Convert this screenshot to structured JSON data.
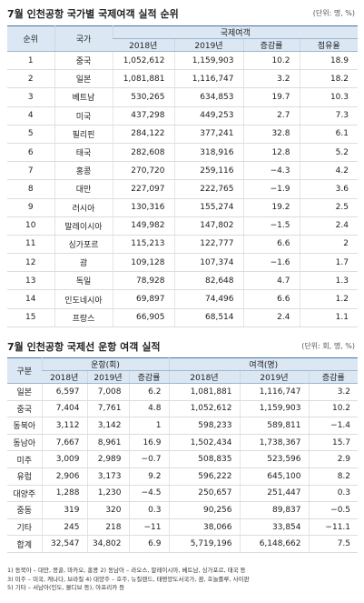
{
  "table1": {
    "title": "7월 인천공항 국가별 국제여객 실적 순위",
    "unit": "(단위: 명, %)",
    "headers": {
      "rank": "순위",
      "country": "국가",
      "group": "국제여객",
      "y2018": "2018년",
      "y2019": "2019년",
      "growth": "증감률",
      "share": "점유율"
    },
    "rows": [
      {
        "rank": "1",
        "country": "중국",
        "y2018": "1,052,612",
        "y2019": "1,159,903",
        "growth": "10.2",
        "share": "18.9"
      },
      {
        "rank": "2",
        "country": "일본",
        "y2018": "1,081,881",
        "y2019": "1,116,747",
        "growth": "3.2",
        "share": "18.2"
      },
      {
        "rank": "3",
        "country": "베트남",
        "y2018": "530,265",
        "y2019": "634,853",
        "growth": "19.7",
        "share": "10.3"
      },
      {
        "rank": "4",
        "country": "미국",
        "y2018": "437,298",
        "y2019": "449,253",
        "growth": "2.7",
        "share": "7.3"
      },
      {
        "rank": "5",
        "country": "필리핀",
        "y2018": "284,122",
        "y2019": "377,241",
        "growth": "32.8",
        "share": "6.1"
      },
      {
        "rank": "6",
        "country": "태국",
        "y2018": "282,608",
        "y2019": "318,916",
        "growth": "12.8",
        "share": "5.2"
      },
      {
        "rank": "7",
        "country": "홍콩",
        "y2018": "270,720",
        "y2019": "259,116",
        "growth": "−4.3",
        "share": "4.2"
      },
      {
        "rank": "8",
        "country": "대만",
        "y2018": "227,097",
        "y2019": "222,765",
        "growth": "−1.9",
        "share": "3.6"
      },
      {
        "rank": "9",
        "country": "러시아",
        "y2018": "130,316",
        "y2019": "155,274",
        "growth": "19.2",
        "share": "2.5"
      },
      {
        "rank": "10",
        "country": "말레이시아",
        "y2018": "149,982",
        "y2019": "147,802",
        "growth": "−1.5",
        "share": "2.4"
      },
      {
        "rank": "11",
        "country": "싱가포르",
        "y2018": "115,213",
        "y2019": "122,777",
        "growth": "6.6",
        "share": "2"
      },
      {
        "rank": "12",
        "country": "괌",
        "y2018": "109,128",
        "y2019": "107,374",
        "growth": "−1.6",
        "share": "1.7"
      },
      {
        "rank": "13",
        "country": "독일",
        "y2018": "78,928",
        "y2019": "82,648",
        "growth": "4.7",
        "share": "1.3"
      },
      {
        "rank": "14",
        "country": "인도네시아",
        "y2018": "69,897",
        "y2019": "74,496",
        "growth": "6.6",
        "share": "1.2"
      },
      {
        "rank": "15",
        "country": "프랑스",
        "y2018": "66,905",
        "y2019": "68,514",
        "growth": "2.4",
        "share": "1.1"
      }
    ]
  },
  "table2": {
    "title": "7월 인천공항 국제선 운항 여객 실적",
    "unit": "(단위: 회, 명, %)",
    "headers": {
      "region": "구분",
      "flights": "운항(회)",
      "passengers": "여객(명)",
      "y2018": "2018년",
      "y2019": "2019년",
      "growth": "증감률"
    },
    "rows": [
      {
        "region": "일본",
        "f2018": "6,597",
        "f2019": "7,008",
        "fg": "6.2",
        "p2018": "1,081,881",
        "p2019": "1,116,747",
        "pg": "3.2"
      },
      {
        "region": "중국",
        "f2018": "7,404",
        "f2019": "7,761",
        "fg": "4.8",
        "p2018": "1,052,612",
        "p2019": "1,159,903",
        "pg": "10.2"
      },
      {
        "region": "동북아",
        "f2018": "3,112",
        "f2019": "3,142",
        "fg": "1",
        "p2018": "598,233",
        "p2019": "589,811",
        "pg": "−1.4"
      },
      {
        "region": "동남아",
        "f2018": "7,667",
        "f2019": "8,961",
        "fg": "16.9",
        "p2018": "1,502,434",
        "p2019": "1,738,367",
        "pg": "15.7"
      },
      {
        "region": "미주",
        "f2018": "3,009",
        "f2019": "2,989",
        "fg": "−0.7",
        "p2018": "508,835",
        "p2019": "523,596",
        "pg": "2.9"
      },
      {
        "region": "유럽",
        "f2018": "2,906",
        "f2019": "3,173",
        "fg": "9.2",
        "p2018": "596,222",
        "p2019": "645,100",
        "pg": "8.2"
      },
      {
        "region": "대양주",
        "f2018": "1,288",
        "f2019": "1,230",
        "fg": "−4.5",
        "p2018": "250,657",
        "p2019": "251,447",
        "pg": "0.3"
      },
      {
        "region": "중동",
        "f2018": "319",
        "f2019": "320",
        "fg": "0.3",
        "p2018": "90,256",
        "p2019": "89,837",
        "pg": "−0.5"
      },
      {
        "region": "기타",
        "f2018": "245",
        "f2019": "218",
        "fg": "−11",
        "p2018": "38,066",
        "p2019": "33,854",
        "pg": "−11.1"
      },
      {
        "region": "합계",
        "f2018": "32,547",
        "f2019": "34,802",
        "fg": "6.9",
        "p2018": "5,719,196",
        "p2019": "6,148,662",
        "pg": "7.5"
      }
    ],
    "notes": [
      "1) 동북아 – 대만, 몽골, 마카오, 홍콩 2) 동남아 – 라오스, 말레이시아, 베트남, 싱가포르, 태국 등",
      "3) 미주 – 미국, 캐나다, 브라질 4) 대양주 – 호주, 뉴질랜드, 태평양도서국가, 괌, 호놀룰루, 사이판",
      "5) 기타 – 서남아(인도, 몰디브 등), 아프리카 등"
    ]
  }
}
